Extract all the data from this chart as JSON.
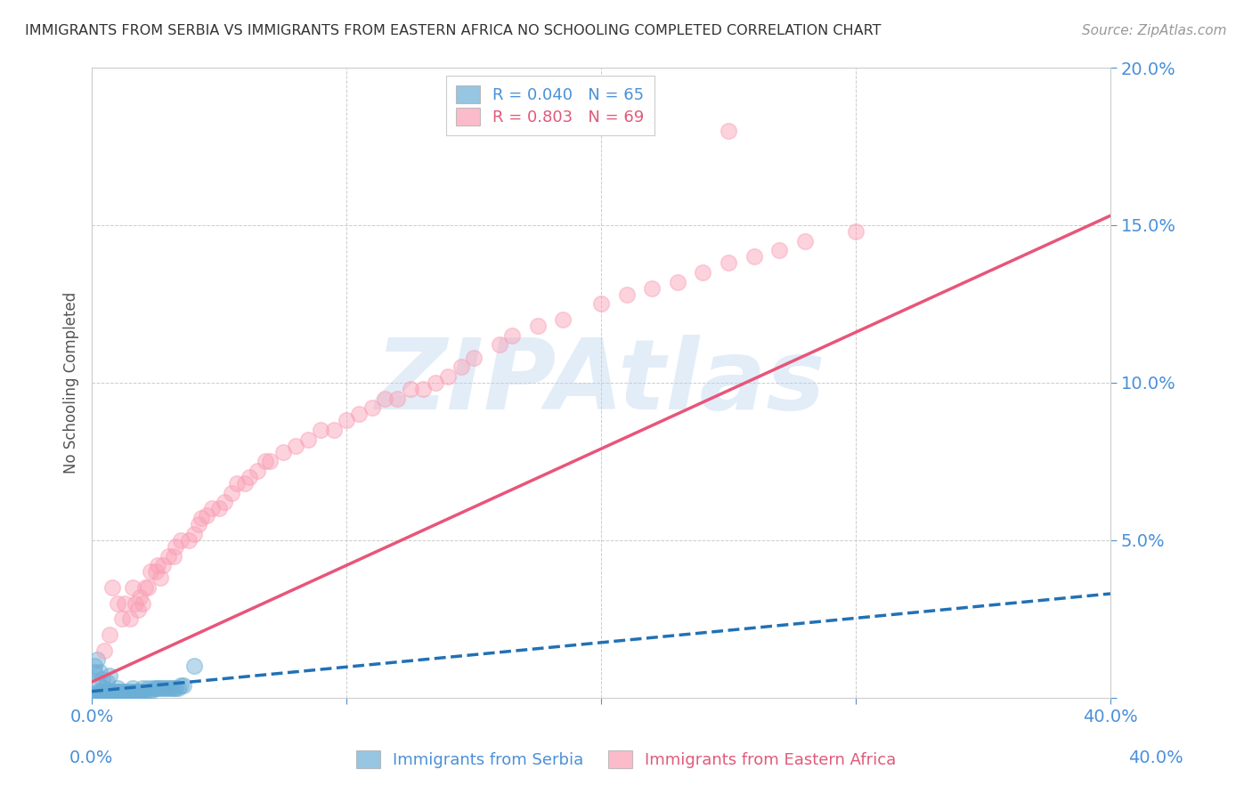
{
  "title": "IMMIGRANTS FROM SERBIA VS IMMIGRANTS FROM EASTERN AFRICA NO SCHOOLING COMPLETED CORRELATION CHART",
  "source": "Source: ZipAtlas.com",
  "ylabel": "No Schooling Completed",
  "xlabel_blue": "Immigrants from Serbia",
  "xlabel_pink": "Immigrants from Eastern Africa",
  "watermark": "ZIPAtlas",
  "xlim": [
    0,
    0.4
  ],
  "ylim": [
    0,
    0.2
  ],
  "legend_blue_R": "R = 0.040",
  "legend_blue_N": "N = 65",
  "legend_pink_R": "R = 0.803",
  "legend_pink_N": "N = 69",
  "blue_color": "#6baed6",
  "pink_color": "#fa9fb5",
  "blue_line_color": "#2171b5",
  "pink_line_color": "#e8557a",
  "title_color": "#333333",
  "blue_scatter_x": [
    0.001,
    0.002,
    0.002,
    0.003,
    0.003,
    0.003,
    0.004,
    0.004,
    0.005,
    0.005,
    0.005,
    0.005,
    0.006,
    0.006,
    0.006,
    0.007,
    0.007,
    0.008,
    0.008,
    0.009,
    0.009,
    0.01,
    0.01,
    0.01,
    0.011,
    0.011,
    0.012,
    0.012,
    0.013,
    0.014,
    0.015,
    0.015,
    0.016,
    0.016,
    0.017,
    0.018,
    0.019,
    0.02,
    0.02,
    0.021,
    0.022,
    0.022,
    0.023,
    0.024,
    0.025,
    0.026,
    0.027,
    0.028,
    0.029,
    0.03,
    0.031,
    0.032,
    0.033,
    0.034,
    0.035,
    0.036,
    0.002,
    0.003,
    0.004,
    0.006,
    0.007,
    0.001,
    0.001,
    0.002,
    0.04
  ],
  "blue_scatter_y": [
    0.001,
    0.002,
    0.001,
    0.001,
    0.002,
    0.0,
    0.001,
    0.002,
    0.001,
    0.002,
    0.001,
    0.003,
    0.001,
    0.002,
    0.001,
    0.001,
    0.002,
    0.001,
    0.002,
    0.001,
    0.002,
    0.002,
    0.003,
    0.001,
    0.002,
    0.001,
    0.002,
    0.001,
    0.002,
    0.002,
    0.002,
    0.001,
    0.002,
    0.003,
    0.002,
    0.002,
    0.002,
    0.002,
    0.003,
    0.002,
    0.002,
    0.003,
    0.002,
    0.003,
    0.003,
    0.003,
    0.003,
    0.003,
    0.003,
    0.003,
    0.003,
    0.003,
    0.003,
    0.003,
    0.004,
    0.004,
    0.005,
    0.008,
    0.006,
    0.005,
    0.007,
    0.01,
    0.008,
    0.012,
    0.01
  ],
  "pink_scatter_x": [
    0.005,
    0.007,
    0.008,
    0.01,
    0.012,
    0.013,
    0.015,
    0.016,
    0.017,
    0.018,
    0.019,
    0.02,
    0.021,
    0.022,
    0.023,
    0.025,
    0.026,
    0.027,
    0.028,
    0.03,
    0.032,
    0.033,
    0.035,
    0.038,
    0.04,
    0.042,
    0.043,
    0.045,
    0.047,
    0.05,
    0.052,
    0.055,
    0.057,
    0.06,
    0.062,
    0.065,
    0.068,
    0.07,
    0.075,
    0.08,
    0.085,
    0.09,
    0.095,
    0.1,
    0.105,
    0.11,
    0.115,
    0.12,
    0.125,
    0.13,
    0.135,
    0.14,
    0.145,
    0.15,
    0.16,
    0.165,
    0.175,
    0.185,
    0.2,
    0.21,
    0.22,
    0.23,
    0.24,
    0.25,
    0.26,
    0.27,
    0.28,
    0.3,
    0.25
  ],
  "pink_scatter_y": [
    0.015,
    0.02,
    0.035,
    0.03,
    0.025,
    0.03,
    0.025,
    0.035,
    0.03,
    0.028,
    0.032,
    0.03,
    0.035,
    0.035,
    0.04,
    0.04,
    0.042,
    0.038,
    0.042,
    0.045,
    0.045,
    0.048,
    0.05,
    0.05,
    0.052,
    0.055,
    0.057,
    0.058,
    0.06,
    0.06,
    0.062,
    0.065,
    0.068,
    0.068,
    0.07,
    0.072,
    0.075,
    0.075,
    0.078,
    0.08,
    0.082,
    0.085,
    0.085,
    0.088,
    0.09,
    0.092,
    0.095,
    0.095,
    0.098,
    0.098,
    0.1,
    0.102,
    0.105,
    0.108,
    0.112,
    0.115,
    0.118,
    0.12,
    0.125,
    0.128,
    0.13,
    0.132,
    0.135,
    0.138,
    0.14,
    0.142,
    0.145,
    0.148,
    0.18
  ],
  "blue_trend_x": [
    0.0,
    0.4
  ],
  "blue_trend_y": [
    0.002,
    0.033
  ],
  "pink_trend_x": [
    0.0,
    0.4
  ],
  "pink_trend_y": [
    0.005,
    0.153
  ]
}
